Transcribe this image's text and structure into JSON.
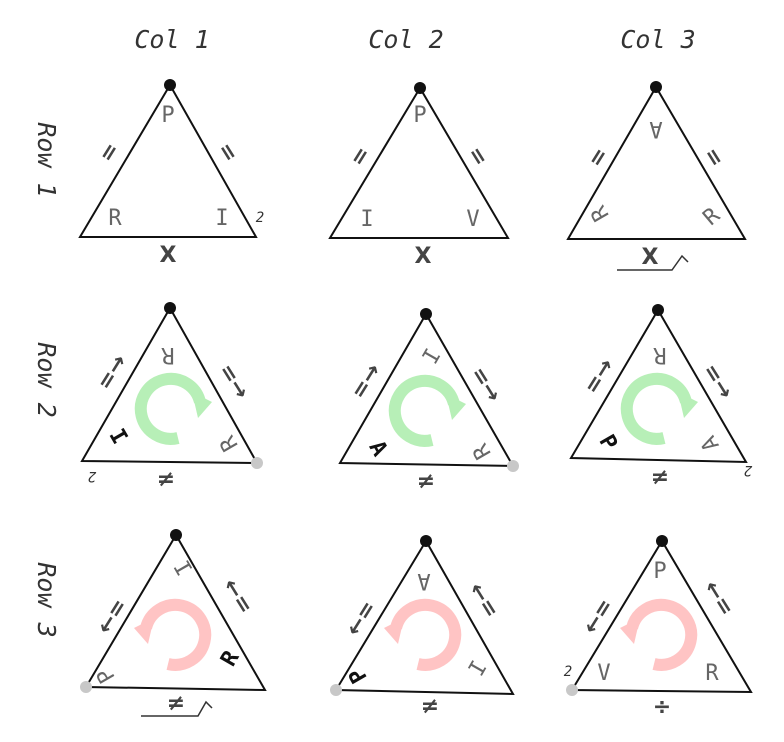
{
  "columns": [
    "Col 1",
    "Col 2",
    "Col 3"
  ],
  "rows": [
    "Row 1",
    "Row 2",
    "Row 3"
  ],
  "colors": {
    "triangle_stroke": "#111111",
    "apex_dot": "#111111",
    "grey_dot": "#c8c8c8",
    "green_arrow": "#b7efb7",
    "red_arrow": "#ffc4c4",
    "label_grey": "#666666"
  },
  "cells": [
    {
      "id": "r1c1",
      "labels": [
        "P",
        "R",
        "I"
      ],
      "side_marks": [
        "=",
        "="
      ],
      "base_op": "X",
      "corner_note": "2",
      "rotation": "none"
    },
    {
      "id": "r1c2",
      "labels": [
        "P",
        "I",
        "V"
      ],
      "side_marks": [
        "=",
        "="
      ],
      "base_op": "X",
      "rotation": "none"
    },
    {
      "id": "r1c3",
      "labels": [
        "A",
        "R",
        "R"
      ],
      "side_marks": [
        "=",
        "="
      ],
      "base_op": "X",
      "rotation": "none"
    },
    {
      "id": "r2c1",
      "labels": [
        "R",
        "I",
        "R"
      ],
      "side_marks": [
        "=→",
        "=→"
      ],
      "base_op": "≠",
      "corner_note": "2",
      "rotation": "clockwise"
    },
    {
      "id": "r2c2",
      "labels": [
        "I",
        "A",
        "R"
      ],
      "side_marks": [
        "=→",
        "=→"
      ],
      "base_op": "≠",
      "rotation": "clockwise"
    },
    {
      "id": "r2c3",
      "labels": [
        "R",
        "P",
        "A"
      ],
      "side_marks": [
        "=→",
        "=→"
      ],
      "base_op": "≠",
      "corner_note": "2",
      "rotation": "clockwise"
    },
    {
      "id": "r3c1",
      "labels": [
        "I",
        "P",
        "R"
      ],
      "side_marks": [
        "←=",
        "←="
      ],
      "base_op": "≠",
      "rotation": "counterclockwise"
    },
    {
      "id": "r3c2",
      "labels": [
        "A",
        "P",
        "I"
      ],
      "side_marks": [
        "←=",
        "←="
      ],
      "base_op": "≠",
      "rotation": "counterclockwise"
    },
    {
      "id": "r3c3",
      "labels": [
        "P",
        "V",
        "R"
      ],
      "side_marks": [
        "←=",
        "←="
      ],
      "base_op": "÷",
      "corner_note": "2",
      "rotation": "counterclockwise"
    }
  ]
}
